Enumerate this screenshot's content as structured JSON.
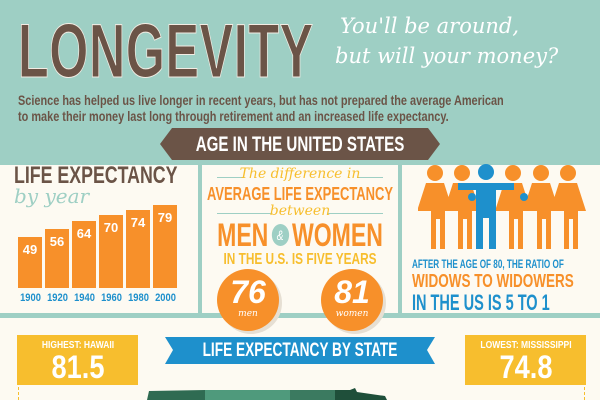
{
  "header": {
    "title": "LONGEVITY",
    "tagline_1": "You'll be around,",
    "tagline_2": "but will your money?",
    "intro_1": "Science has helped us live longer in recent years, but has not prepared the average American",
    "intro_2": "to make their money last long through retirement and an increased life expectancy."
  },
  "section_banner": "AGE IN THE UNITED STATES",
  "chart_data": {
    "type": "bar",
    "title": "LIFE EXPECTANCY",
    "subtitle": "by year",
    "categories": [
      "1900",
      "1920",
      "1940",
      "1960",
      "1980",
      "2000"
    ],
    "values": [
      49,
      56,
      64,
      70,
      74,
      79
    ],
    "ylim": [
      0,
      80
    ],
    "color": "#f7902a"
  },
  "gender": {
    "line1": "The difference in",
    "line2": "AVERAGE LIFE EXPECTANCY",
    "line3": "between",
    "men": "MEN",
    "amp": "&",
    "women": "WOMEN",
    "line5": "IN THE U.S. IS FIVE YEARS",
    "men_value": "76",
    "men_label": "men",
    "women_value": "81",
    "women_label": "women"
  },
  "widows": {
    "line1": "AFTER THE AGE OF 80, THE RATIO OF",
    "line2": "WIDOWS TO WIDOWERS",
    "line3": "IN THE US IS 5 TO 1"
  },
  "state": {
    "banner": "LIFE EXPECTANCY BY STATE",
    "highest_label": "HIGHEST: HAWAII",
    "highest_value": "81.5",
    "lowest_label": "LOWEST: MISSISSIPPI",
    "lowest_value": "74.8"
  },
  "colors": {
    "teal": "#9ecfc4",
    "brown": "#6b5447",
    "orange": "#f7902a",
    "blue": "#1e90cc",
    "yellow": "#f7be2e"
  }
}
